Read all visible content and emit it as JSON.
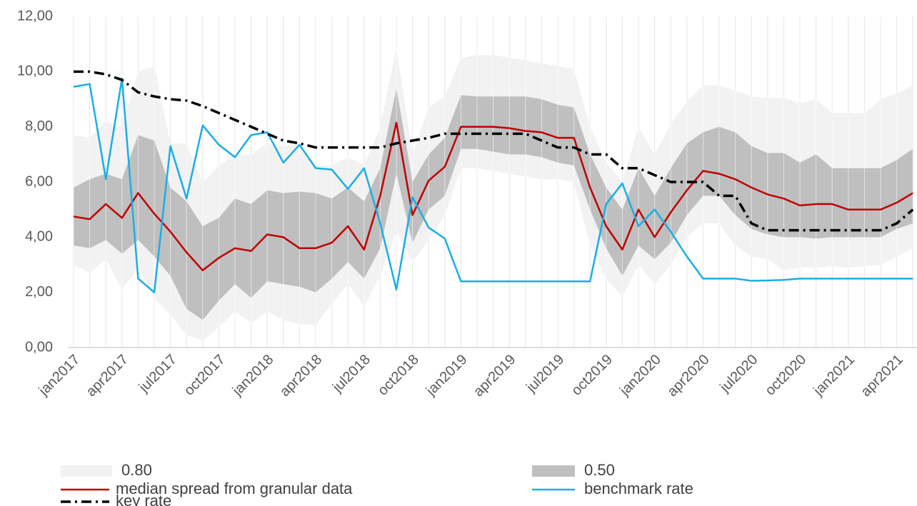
{
  "chart_data": {
    "type": "line",
    "categories": [
      "jan2017",
      null,
      null,
      "apr2017",
      null,
      null,
      "jul2017",
      null,
      null,
      "oct2017",
      null,
      null,
      "jan2018",
      null,
      null,
      "apr2018",
      null,
      null,
      "jul2018",
      null,
      null,
      "oct2018",
      null,
      null,
      "jan2019",
      null,
      null,
      "apr2019",
      null,
      null,
      "jul2019",
      null,
      null,
      "oct2019",
      null,
      null,
      "jan2020",
      null,
      null,
      "apr2020",
      null,
      null,
      "jul2020",
      null,
      null,
      "oct2020",
      null,
      null,
      "jan2021",
      null,
      null,
      "apr2021",
      null
    ],
    "ylim": [
      0,
      12
    ],
    "yticks": [
      {
        "value": 0,
        "label": "0,00"
      },
      {
        "value": 2,
        "label": "2,00"
      },
      {
        "value": 4,
        "label": "4,00"
      },
      {
        "value": 6,
        "label": "6,00"
      },
      {
        "value": 8,
        "label": "8,00"
      },
      {
        "value": 10,
        "label": "10,00"
      },
      {
        "value": 12,
        "label": "12,00"
      }
    ],
    "grid": true,
    "bands": [
      {
        "name": "0.80",
        "color": "#f2f2f2",
        "upper": [
          7.7,
          7.6,
          8.2,
          8.0,
          10.0,
          10.2,
          7.4,
          7.4,
          6.0,
          6.6,
          7.0,
          7.0,
          7.4,
          7.3,
          7.4,
          6.6,
          6.6,
          6.9,
          6.6,
          8.0,
          10.9,
          7.0,
          8.7,
          9.1,
          10.5,
          10.6,
          10.6,
          10.5,
          10.4,
          10.3,
          10.2,
          10.1,
          8.0,
          6.7,
          6.0,
          8.0,
          7.0,
          8.1,
          8.9,
          9.5,
          9.5,
          9.3,
          9.1,
          9.05,
          9.05,
          8.85,
          9.0,
          8.5,
          8.5,
          8.5,
          9.0,
          9.2,
          9.5
        ],
        "lower": [
          3.0,
          2.7,
          3.2,
          2.1,
          2.9,
          1.8,
          1.2,
          0.45,
          0.25,
          0.75,
          1.3,
          0.9,
          1.3,
          1.0,
          0.85,
          0.8,
          1.6,
          2.3,
          1.5,
          2.6,
          4.2,
          3.1,
          3.9,
          4.8,
          6.5,
          6.5,
          6.4,
          6.3,
          6.2,
          6.1,
          6.1,
          6.0,
          3.7,
          2.5,
          1.85,
          3.0,
          2.3,
          3.0,
          4.0,
          4.5,
          4.5,
          3.7,
          3.3,
          3.2,
          2.8,
          2.9,
          2.9,
          2.95,
          2.9,
          2.95,
          3.0,
          3.3,
          3.6
        ]
      },
      {
        "name": "0.50",
        "color": "#bfbfbf",
        "upper": [
          5.8,
          6.1,
          6.3,
          6.1,
          7.7,
          7.5,
          5.8,
          5.3,
          4.4,
          4.7,
          5.4,
          5.2,
          5.7,
          5.6,
          5.65,
          5.6,
          5.4,
          5.8,
          5.3,
          6.5,
          9.4,
          6.0,
          7.0,
          7.6,
          9.15,
          9.1,
          9.1,
          9.1,
          9.1,
          9.0,
          8.8,
          8.7,
          7.0,
          5.8,
          5.0,
          6.5,
          5.5,
          6.5,
          7.4,
          7.8,
          8.0,
          7.8,
          7.3,
          7.05,
          7.05,
          6.7,
          7.0,
          6.5,
          6.5,
          6.5,
          6.5,
          6.8,
          7.2
        ],
        "lower": [
          3.7,
          3.6,
          3.9,
          3.4,
          3.9,
          3.3,
          2.6,
          1.4,
          1.0,
          1.7,
          2.3,
          1.8,
          2.4,
          2.3,
          2.2,
          2.0,
          2.5,
          3.1,
          2.5,
          3.6,
          6.3,
          3.8,
          5.0,
          5.5,
          7.2,
          7.2,
          7.1,
          7.0,
          7.0,
          6.9,
          6.7,
          6.6,
          5.0,
          3.6,
          2.6,
          3.7,
          3.2,
          3.8,
          4.8,
          5.5,
          5.5,
          4.8,
          4.3,
          4.1,
          4.0,
          4.0,
          3.95,
          4.0,
          4.0,
          4.0,
          4.0,
          4.3,
          4.5
        ]
      }
    ],
    "series": [
      {
        "name": "median spread from granular data",
        "color": "#c00000",
        "dash": "solid",
        "values": [
          4.75,
          4.65,
          5.2,
          4.7,
          5.6,
          4.85,
          4.2,
          3.45,
          2.8,
          3.25,
          3.6,
          3.5,
          4.1,
          4.0,
          3.6,
          3.6,
          3.8,
          4.4,
          3.55,
          5.5,
          8.15,
          4.8,
          6.05,
          6.55,
          8.0,
          8.0,
          8.0,
          7.95,
          7.85,
          7.8,
          7.6,
          7.6,
          5.8,
          4.4,
          3.55,
          5.0,
          4.0,
          4.9,
          5.7,
          6.4,
          6.3,
          6.1,
          5.8,
          5.55,
          5.4,
          5.15,
          5.2,
          5.2,
          5.0,
          5.0,
          5.0,
          5.25,
          5.6
        ]
      },
      {
        "name": "benchmark rate",
        "color": "#1aaee5",
        "dash": "solid",
        "values": [
          9.45,
          9.55,
          6.1,
          9.75,
          2.5,
          2.0,
          7.3,
          5.4,
          8.05,
          7.35,
          6.9,
          7.7,
          7.8,
          6.7,
          7.35,
          6.5,
          6.45,
          5.75,
          6.5,
          4.5,
          2.1,
          5.45,
          4.35,
          3.95,
          2.4,
          2.4,
          2.4,
          2.4,
          2.4,
          2.4,
          2.4,
          2.4,
          2.4,
          5.2,
          5.95,
          4.4,
          5.0,
          4.2,
          3.3,
          2.5,
          2.5,
          2.5,
          2.42,
          2.43,
          2.45,
          2.5,
          2.5,
          2.5,
          2.5,
          2.5,
          2.5,
          2.5,
          2.5
        ]
      },
      {
        "name": "key rate",
        "color": "#000000",
        "dash": "dashdot",
        "values": [
          10.0,
          10.0,
          9.9,
          9.7,
          9.25,
          9.1,
          9.0,
          8.95,
          8.75,
          8.5,
          8.25,
          8.0,
          7.75,
          7.5,
          7.4,
          7.25,
          7.25,
          7.25,
          7.25,
          7.25,
          7.4,
          7.5,
          7.6,
          7.75,
          7.75,
          7.75,
          7.75,
          7.75,
          7.75,
          7.5,
          7.25,
          7.25,
          7.0,
          7.0,
          6.5,
          6.5,
          6.25,
          6.0,
          6.0,
          6.0,
          5.5,
          5.5,
          4.5,
          4.25,
          4.25,
          4.25,
          4.25,
          4.25,
          4.25,
          4.25,
          4.25,
          4.5,
          5.0
        ]
      }
    ]
  }
}
